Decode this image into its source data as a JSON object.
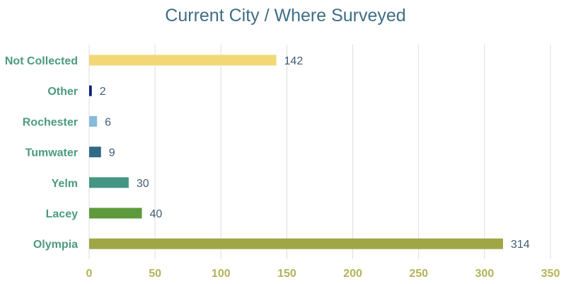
{
  "chart_data": {
    "type": "bar",
    "orientation": "horizontal",
    "title": "Current City / Where Surveyed",
    "xlabel": "",
    "ylabel": "",
    "xlim": [
      0,
      350
    ],
    "xticks": [
      0,
      50,
      100,
      150,
      200,
      250,
      300,
      350
    ],
    "grid": "vertical",
    "legend": "none",
    "categories": [
      "Not Collected",
      "Other",
      "Rochester",
      "Tumwater",
      "Yelm",
      "Lacey",
      "Olympia"
    ],
    "values": [
      142,
      2,
      6,
      9,
      30,
      40,
      314
    ],
    "colors": [
      "#f2d874",
      "#0b1f7a",
      "#87bcd8",
      "#2f6a86",
      "#449683",
      "#5c9a3c",
      "#9fa645"
    ],
    "category_label_color": "#4c9a80",
    "tick_label_color": "#b3b35a",
    "value_label_color": "#3f5e74",
    "grid_color": "#dddddd"
  }
}
